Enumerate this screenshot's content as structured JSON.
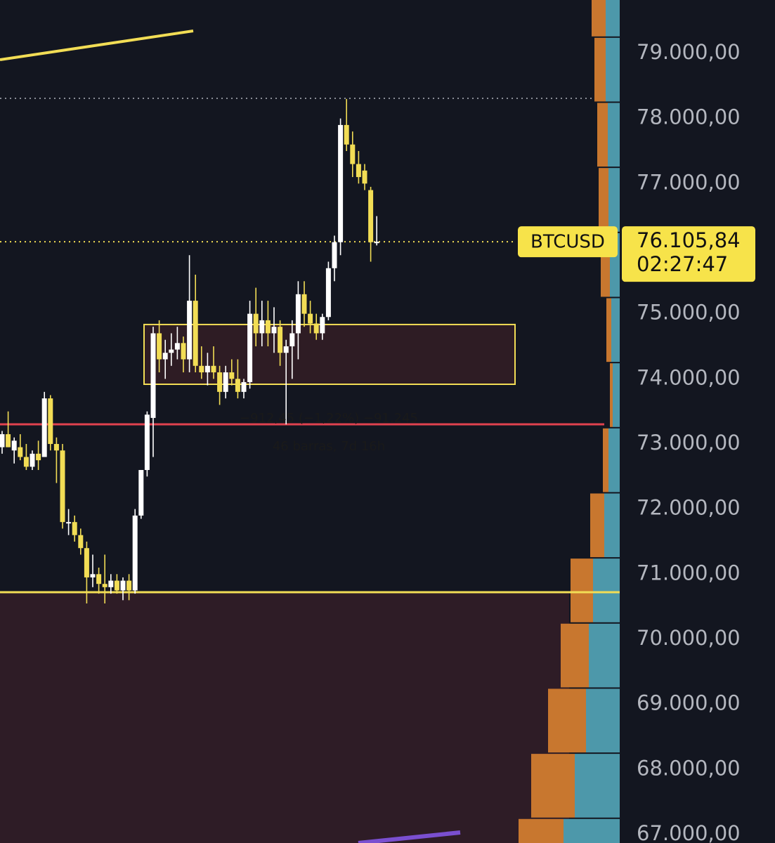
{
  "chart_data": {
    "type": "candlestick",
    "symbol": "BTCUSD",
    "countdown": "02:27:47",
    "last_price": {
      "value": 76105.84,
      "label": "76.105,84"
    },
    "up_color": "#ffffff",
    "down_color": "#f2dd55",
    "ylim": [
      66870,
      79820
    ],
    "yticks": [
      {
        "value": 67000,
        "label": "67.000,00"
      },
      {
        "value": 68000,
        "label": "68.000,00"
      },
      {
        "value": 69000,
        "label": "69.000,00"
      },
      {
        "value": 70000,
        "label": "70.000,00"
      },
      {
        "value": 71000,
        "label": "71.000,00"
      },
      {
        "value": 72000,
        "label": "72.000,00"
      },
      {
        "value": 73000,
        "label": "73.000,00"
      },
      {
        "value": 74000,
        "label": "74.000,00"
      },
      {
        "value": 75000,
        "label": "75.000,00"
      },
      {
        "value": 76000,
        "label": "76.000,00"
      },
      {
        "value": 77000,
        "label": "77.000,00"
      },
      {
        "value": 78000,
        "label": "78.000,00"
      },
      {
        "value": 79000,
        "label": "79.000,00"
      }
    ],
    "open": [
      72950,
      73150,
      72900,
      72950,
      72800,
      72650,
      72850,
      72800,
      73700,
      73000,
      72900,
      71800,
      71800,
      71600,
      71400,
      70950,
      71000,
      70850,
      70800,
      70900,
      70750,
      70900,
      70750,
      71900,
      72600,
      73400,
      74700,
      74300,
      74400,
      74450,
      74550,
      74300,
      75200,
      74200,
      74100,
      74200,
      74100,
      73800,
      74100,
      74000,
      73800,
      73950,
      75000,
      74700,
      74900,
      74700,
      74800,
      74400,
      74500,
      74700,
      75300,
      75000,
      74850,
      74700,
      74950,
      75700,
      76100,
      77900,
      77600,
      77300,
      77200,
      76900,
      76100
    ],
    "high": [
      73200,
      73500,
      73100,
      73150,
      73000,
      72900,
      73050,
      73800,
      73750,
      73100,
      73000,
      72000,
      71900,
      71700,
      71500,
      71300,
      71100,
      71300,
      71000,
      71000,
      70950,
      71000,
      72000,
      72600,
      73500,
      74800,
      74900,
      74600,
      74700,
      74800,
      74650,
      75900,
      75600,
      74500,
      74400,
      74500,
      74200,
      74200,
      74300,
      74300,
      74000,
      75200,
      75400,
      75200,
      75200,
      75100,
      74900,
      74600,
      74900,
      75500,
      75500,
      75200,
      75000,
      75000,
      75800,
      76200,
      78000,
      78300,
      77800,
      77500,
      77300,
      76950,
      76500
    ],
    "low": [
      72850,
      72950,
      72700,
      72750,
      72600,
      72600,
      72600,
      72800,
      72900,
      72400,
      71700,
      71600,
      71500,
      71300,
      70550,
      70800,
      70700,
      70550,
      70700,
      70700,
      70600,
      70600,
      70700,
      71850,
      72500,
      72800,
      74100,
      74000,
      74200,
      74300,
      74100,
      74100,
      74100,
      74000,
      73900,
      74000,
      73600,
      73700,
      73900,
      73700,
      73700,
      73850,
      74500,
      74500,
      74500,
      74400,
      74200,
      73300,
      74000,
      74300,
      74800,
      74700,
      74600,
      74600,
      74900,
      75500,
      75900,
      77500,
      77100,
      77000,
      76900,
      75800,
      76050
    ],
    "close": [
      73150,
      72950,
      73050,
      72800,
      72650,
      72850,
      72750,
      73700,
      73000,
      72900,
      71800,
      71800,
      71600,
      71400,
      70950,
      71000,
      70850,
      70800,
      70900,
      70750,
      70900,
      70750,
      71900,
      72600,
      73450,
      74700,
      74300,
      74400,
      74450,
      74550,
      74300,
      75200,
      74200,
      74100,
      74200,
      74100,
      73800,
      74100,
      74000,
      73800,
      73950,
      75000,
      74700,
      74900,
      74700,
      74800,
      74400,
      74500,
      74700,
      75300,
      75000,
      74850,
      74700,
      74950,
      75700,
      76100,
      77900,
      77600,
      77300,
      77100,
      77000,
      76100,
      76106
    ],
    "levels": [
      {
        "value": 70723,
        "color": "#f2dd55",
        "style": "solid"
      },
      {
        "value": 73302,
        "color": "#e0424f",
        "style": "solid"
      },
      {
        "value": 78309,
        "color": "#8a8d96",
        "style": "dotted"
      }
    ],
    "zones": [
      {
        "from": 73917,
        "to": 74835,
        "fill": "#2e1c24",
        "border": "#f2dd55"
      },
      {
        "from": 66870,
        "to": 70723,
        "fill": "#2e1c26",
        "border": "none"
      }
    ],
    "annotations": [
      "−912,45 (−1,22%) −91.245",
      "46 barras, 7d 16h"
    ],
    "profile": {
      "bins": [
        66250,
        67250,
        68250,
        69250,
        70250,
        71250,
        72250,
        73250,
        74250,
        75250,
        76250,
        77250,
        78250,
        79250,
        80250
      ],
      "buy": [
        64,
        62,
        54,
        40,
        32,
        20,
        8,
        4,
        7,
        13,
        14,
        15,
        16,
        20
      ],
      "sell": [
        80,
        64,
        48,
        44,
        38,
        22,
        16,
        10,
        12,
        14,
        16,
        17,
        20,
        20
      ],
      "buy_color": "#c8772f",
      "sell_color": "#4d98aa"
    }
  }
}
